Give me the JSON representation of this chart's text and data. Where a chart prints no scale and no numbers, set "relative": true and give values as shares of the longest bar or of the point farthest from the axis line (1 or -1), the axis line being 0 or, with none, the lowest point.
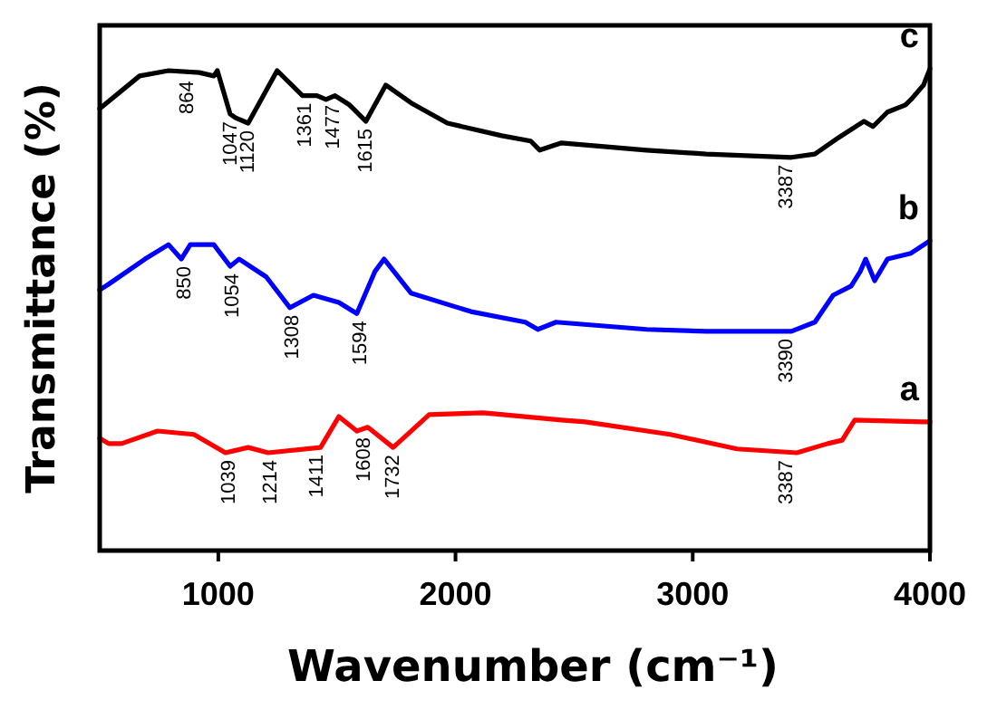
{
  "chart_data": {
    "type": "line",
    "relative": true,
    "xlabel": "Wavenumber (cm⁻¹)",
    "ylabel": "Transmittance (%)",
    "xlim": [
      500,
      4000
    ],
    "xticks": [
      1000,
      2000,
      3000,
      4000
    ],
    "tick_labels": "x",
    "marker": "none",
    "line_style": "solid",
    "series": [
      {
        "name": "a",
        "color": "#ff0000",
        "x": [
          500,
          538,
          592,
          744,
          897,
          1030,
          1126,
          1210,
          1431,
          1508,
          1584,
          1630,
          1737,
          1889,
          2118,
          2447,
          2546,
          2905,
          3187,
          3439,
          3569,
          3630,
          3683,
          3973,
          4000
        ],
        "values": [
          0.233,
          0.222,
          0.222,
          0.248,
          0.241,
          0.203,
          0.214,
          0.203,
          0.214,
          0.278,
          0.248,
          0.256,
          0.214,
          0.282,
          0.286,
          0.271,
          0.267,
          0.241,
          0.211,
          0.203,
          0.222,
          0.229,
          0.271,
          0.267,
          0.267
        ]
      },
      {
        "name": "b",
        "color": "#0000ff",
        "x": [
          500,
          538,
          691,
          790,
          844,
          882,
          981,
          1050,
          1088,
          1202,
          1302,
          1401,
          1508,
          1584,
          1660,
          1699,
          1813,
          2065,
          2294,
          2347,
          2424,
          2805,
          3057,
          3416,
          3515,
          3592,
          3668,
          3706,
          3729,
          3767,
          3821,
          3920,
          4000
        ],
        "values": [
          0.541,
          0.553,
          0.605,
          0.635,
          0.605,
          0.635,
          0.635,
          0.59,
          0.605,
          0.568,
          0.504,
          0.53,
          0.515,
          0.492,
          0.579,
          0.605,
          0.534,
          0.496,
          0.474,
          0.459,
          0.474,
          0.459,
          0.455,
          0.455,
          0.474,
          0.53,
          0.549,
          0.579,
          0.605,
          0.56,
          0.605,
          0.617,
          0.643
        ]
      },
      {
        "name": "c",
        "color": "#000000",
        "x": [
          500,
          668,
          790,
          920,
          981,
          996,
          1050,
          1073,
          1126,
          1248,
          1355,
          1416,
          1454,
          1492,
          1553,
          1622,
          1706,
          1813,
          1966,
          2195,
          2317,
          2355,
          2447,
          2805,
          3057,
          3416,
          3515,
          3615,
          3722,
          3760,
          3821,
          3897,
          3920,
          3973,
          4000
        ],
        "values": [
          0.917,
          0.985,
          0.996,
          0.992,
          0.985,
          0.996,
          0.906,
          0.898,
          0.887,
          0.996,
          0.944,
          0.944,
          0.936,
          0.944,
          0.925,
          0.891,
          0.966,
          0.929,
          0.887,
          0.861,
          0.85,
          0.831,
          0.846,
          0.831,
          0.823,
          0.816,
          0.823,
          0.857,
          0.891,
          0.88,
          0.91,
          0.925,
          0.936,
          0.966,
          1
        ]
      }
    ],
    "annotations": [
      {
        "text": "864",
        "x": 864,
        "y": 0.99
      },
      {
        "text": "1047",
        "x": 1047,
        "y": 0.906
      },
      {
        "text": "1120",
        "x": 1120,
        "y": 0.887
      },
      {
        "text": "1361",
        "x": 1361,
        "y": 0.944
      },
      {
        "text": "1477",
        "x": 1477,
        "y": 0.94
      },
      {
        "text": "1615",
        "x": 1615,
        "y": 0.891
      },
      {
        "text": "3387",
        "x": 3387,
        "y": 0.816
      },
      {
        "text": "850",
        "x": 850,
        "y": 0.605
      },
      {
        "text": "1054",
        "x": 1054,
        "y": 0.59
      },
      {
        "text": "1308",
        "x": 1308,
        "y": 0.504
      },
      {
        "text": "1594",
        "x": 1594,
        "y": 0.492
      },
      {
        "text": "3390",
        "x": 3390,
        "y": 0.455
      },
      {
        "text": "1039",
        "x": 1039,
        "y": 0.203
      },
      {
        "text": "1214",
        "x": 1214,
        "y": 0.203
      },
      {
        "text": "1411",
        "x": 1411,
        "y": 0.214
      },
      {
        "text": "1608",
        "x": 1608,
        "y": 0.25
      },
      {
        "text": "1732",
        "x": 1732,
        "y": 0.214
      },
      {
        "text": "3387",
        "x": 3387,
        "y": 0.203
      }
    ]
  }
}
